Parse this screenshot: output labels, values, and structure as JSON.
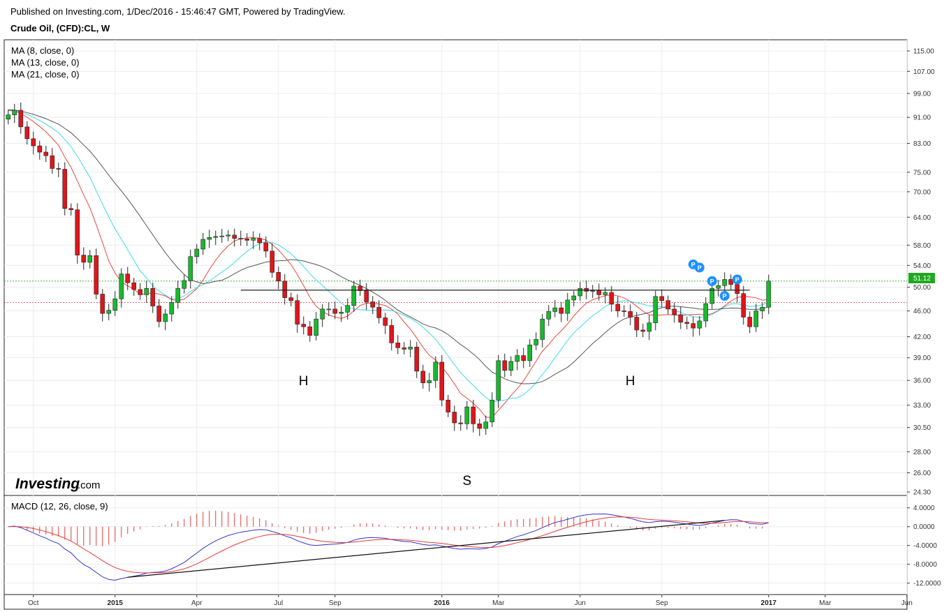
{
  "header": {
    "published": "Published on Investing.com, 1/Dec/2016 - 15:46:47 GMT, Powered by TradingView.",
    "symbol": "Crude Oil, (CFD):CL, W"
  },
  "logo": {
    "brand": "Investing",
    "suffix": ".com"
  },
  "colors": {
    "up": "#19b92f",
    "down": "#e0161b",
    "ma8": "#e8473b",
    "ma13": "#3fd9e8",
    "ma21": "#555555",
    "macd": "#3333cc",
    "signal": "#e23a3a",
    "hist": "#e23a3a",
    "pivot": "#1e90ff",
    "resistance_green": "#1fa81f",
    "resistance_red": "#e03030"
  },
  "chart_data": [
    {
      "type": "candlestick",
      "title": "Crude Oil, (CFD):CL, W",
      "scale": "log",
      "ylim": [
        24.3,
        117
      ],
      "y_ticks": [
        "115.00",
        "107.00",
        "99.00",
        "91.00",
        "83.00",
        "75.00",
        "70.00",
        "64.00",
        "58.00",
        "54.00",
        "50.00",
        "46.00",
        "42.00",
        "39.00",
        "36.00",
        "33.00",
        "30.50",
        "28.00",
        "26.00",
        "24.30"
      ],
      "x_ticks": [
        {
          "label": "Oct",
          "bold": false,
          "week": 4
        },
        {
          "label": "2015",
          "bold": true,
          "week": 17
        },
        {
          "label": "Apr",
          "bold": false,
          "week": 30
        },
        {
          "label": "Jul",
          "bold": false,
          "week": 43
        },
        {
          "label": "Sep",
          "bold": false,
          "week": 52
        },
        {
          "label": "2016",
          "bold": true,
          "week": 69
        },
        {
          "label": "Mar",
          "bold": false,
          "week": 78
        },
        {
          "label": "Jun",
          "bold": false,
          "week": 91
        },
        {
          "label": "Sep",
          "bold": false,
          "week": 104
        },
        {
          "label": "2017",
          "bold": true,
          "week": 121
        },
        {
          "label": "Mar",
          "bold": false,
          "week": 130
        },
        {
          "label": "Jun",
          "bold": false,
          "week": 143
        }
      ],
      "legend": [
        "MA (8, close, 0)",
        "MA (13, close, 0)",
        "MA (21, close, 0)"
      ],
      "last_price": "51.12",
      "closes": [
        91.8,
        93.3,
        88.0,
        84.4,
        82.3,
        80.5,
        79.5,
        76.0,
        75.8,
        66.0,
        65.7,
        56.0,
        54.6,
        55.9,
        48.8,
        45.6,
        46.1,
        48.0,
        52.4,
        50.8,
        49.6,
        48.7,
        49.8,
        46.8,
        44.3,
        45.5,
        47.4,
        49.8,
        51.2,
        55.7,
        57.2,
        59.2,
        59.6,
        59.8,
        59.9,
        60.1,
        59.4,
        59.3,
        59.0,
        59.4,
        58.5,
        56.8,
        52.7,
        51.1,
        48.2,
        47.7,
        43.9,
        43.5,
        42.2,
        44.7,
        46.3,
        46.3,
        45.6,
        45.8,
        46.9,
        50.2,
        49.4,
        47.5,
        46.6,
        44.9,
        43.7,
        41.1,
        40.4,
        40.2,
        40.5,
        37.2,
        35.7,
        36.0,
        38.4,
        33.6,
        32.2,
        31.0,
        30.9,
        32.8,
        30.9,
        30.4,
        31.1,
        33.6,
        38.6,
        37.3,
        38.5,
        39.3,
        38.6,
        40.8,
        41.6,
        44.7,
        45.9,
        46.5,
        45.6,
        47.8,
        48.5,
        49.8,
        49.3,
        49.4,
        48.7,
        49.1,
        47.1,
        46.0,
        45.9,
        45.0,
        43.0,
        42.8,
        44.1,
        48.4,
        47.7,
        46.3,
        45.4,
        44.2,
        44.0,
        43.3,
        44.4,
        47.2,
        49.8,
        50.3,
        51.4,
        50.5,
        48.9,
        45.0,
        43.5,
        46.0,
        46.6,
        51.1
      ],
      "annotations": [
        {
          "text": "H",
          "week": 47
        },
        {
          "text": "S",
          "week": 73
        },
        {
          "text": "H",
          "week": 99
        }
      ],
      "pivot_labels": [
        "P",
        "P",
        "P",
        "P",
        "P"
      ],
      "neckline": {
        "from_week": 37,
        "to_week": 118,
        "price": 49.5
      },
      "resistance_levels": [
        51.1,
        47.4
      ]
    },
    {
      "type": "macd",
      "title": "MACD (12, 26, close, 9)",
      "y_ticks": [
        "4.0000",
        "0.0000",
        "-4.0000",
        "-8.0000",
        "-12.0000"
      ],
      "ylim": [
        -12.8,
        5.0
      ],
      "trendline": {
        "from_week": 19,
        "to_week": 114
      }
    }
  ]
}
